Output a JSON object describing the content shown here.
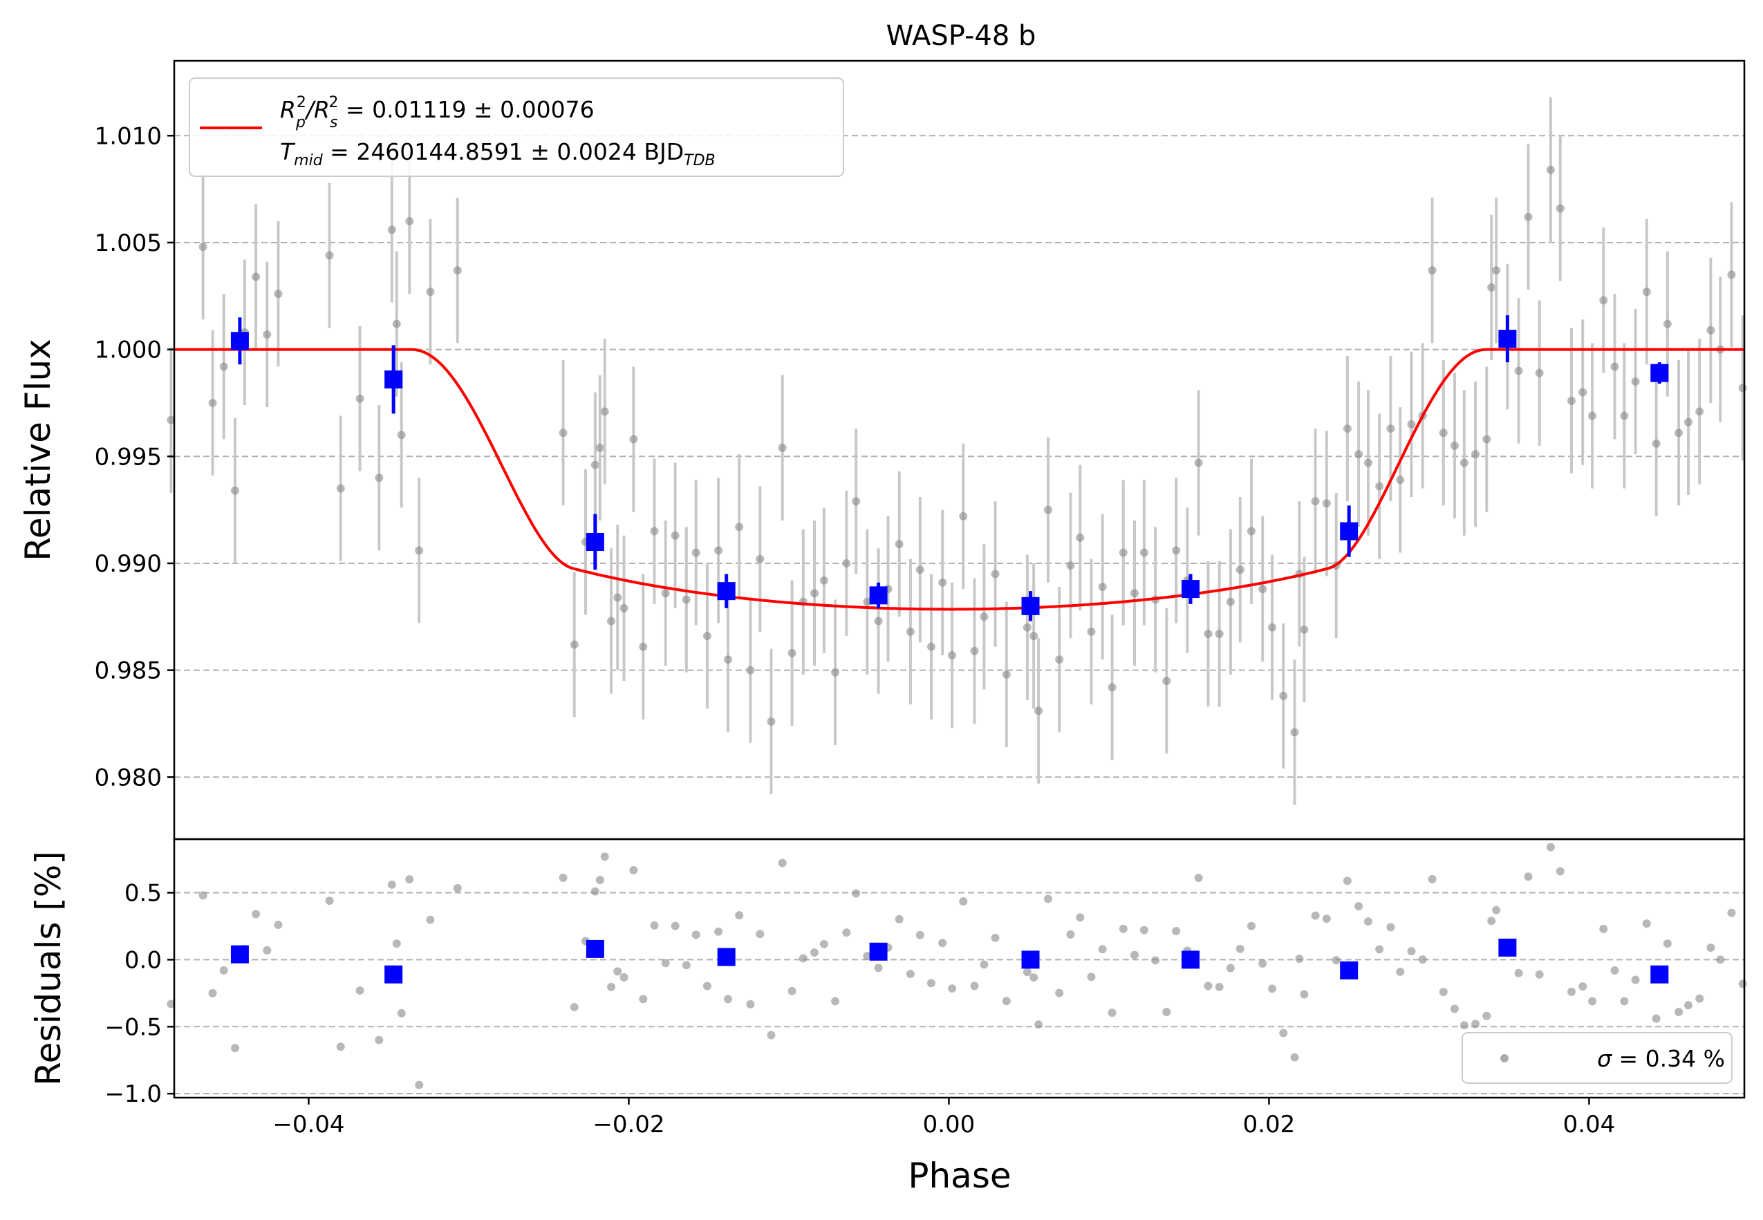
{
  "chart_data": {
    "title": "WASP-48 b",
    "xlabel": "Phase",
    "xlim": [
      -0.0484,
      0.0497
    ],
    "xticks": [
      "−0.04",
      "−0.02",
      "0.00",
      "0.02",
      "0.04"
    ],
    "xtick_values": [
      -0.04,
      -0.02,
      0.0,
      0.02,
      0.04
    ],
    "grid": "horizontal dashed",
    "top": {
      "type": "scatter",
      "ylabel": "Relative Flux",
      "ylim": [
        0.9771,
        1.0135
      ],
      "yticks": [
        "0.980",
        "0.985",
        "0.990",
        "0.995",
        "1.000",
        "1.005",
        "1.010"
      ],
      "ytick_values": [
        0.98,
        0.985,
        0.99,
        0.995,
        1.0,
        1.005,
        1.01
      ],
      "legend": {
        "placement": "upper-left",
        "line1": {
          "prefix": "R",
          "sub1": "p",
          "sup1": "2",
          "sep": "/R",
          "sub2": "s",
          "sup2": "2",
          "rest": " = 0.01119 ± 0.00076"
        },
        "line2": {
          "prefix": "T",
          "sub": "mid",
          "rest": " = 2460144.8591 ± 0.0024 BJD",
          "sub_end": "TDB"
        }
      },
      "model": {
        "color": "#ff0000",
        "depth": 0.01214,
        "t_ingress_start": -0.0336,
        "t_ingress_end": -0.0235,
        "t_egress_start": 0.0237,
        "t_egress_end": 0.0336,
        "limb_coeff": 1.1,
        "floor": 0.98785
      },
      "raw_points": {
        "color": "#888888",
        "error": 0.0034,
        "x": [
          -0.0486,
          -0.0466,
          -0.046,
          -0.0453,
          -0.0446,
          -0.044,
          -0.0433,
          -0.0426,
          -0.0419,
          -0.0387,
          -0.038,
          -0.0368,
          -0.0356,
          -0.0348,
          -0.0345,
          -0.0342,
          -0.0337,
          -0.0331,
          -0.0324,
          -0.0307,
          -0.0241,
          -0.0234,
          -0.0227,
          -0.0221,
          -0.0218,
          -0.0215,
          -0.0211,
          -0.0207,
          -0.0203,
          -0.0197,
          -0.0191,
          -0.0184,
          -0.0177,
          -0.0171,
          -0.0164,
          -0.0158,
          -0.0151,
          -0.0144,
          -0.0138,
          -0.0131,
          -0.0124,
          -0.0118,
          -0.0111,
          -0.0104,
          -0.0098,
          -0.0091,
          -0.0084,
          -0.0078,
          -0.0071,
          -0.0064,
          -0.0058,
          -0.0051,
          -0.0044,
          -0.0038,
          -0.0031,
          -0.0024,
          -0.0018,
          -0.0011,
          -0.0004,
          0.0002,
          0.0009,
          0.0016,
          0.0022,
          0.0029,
          0.0036,
          0.0049,
          0.0053,
          0.0056,
          0.0062,
          0.0069,
          0.0076,
          0.0082,
          0.0089,
          0.0096,
          0.0102,
          0.0109,
          0.0116,
          0.0122,
          0.0129,
          0.0136,
          0.0142,
          0.0149,
          0.0156,
          0.0162,
          0.0169,
          0.0176,
          0.0182,
          0.0189,
          0.0196,
          0.0202,
          0.0209,
          0.0216,
          0.0219,
          0.0222,
          0.0229,
          0.0236,
          0.0242,
          0.0249,
          0.0256,
          0.0262,
          0.0269,
          0.0276,
          0.0282,
          0.0289,
          0.0296,
          0.0302,
          0.0309,
          0.0316,
          0.0322,
          0.0329,
          0.0336,
          0.0339,
          0.0342,
          0.0349,
          0.0356,
          0.0362,
          0.0369,
          0.0376,
          0.0382,
          0.0389,
          0.0396,
          0.0402,
          0.0409,
          0.0416,
          0.0422,
          0.0429,
          0.0436,
          0.0442,
          0.0449,
          0.0456,
          0.0462,
          0.0469,
          0.0476,
          0.0482,
          0.0489,
          0.0496
        ],
        "y": [
          0.9967,
          1.0048,
          0.9975,
          0.9992,
          0.9934,
          1.0008,
          1.0034,
          1.0007,
          1.0026,
          1.0044,
          0.9935,
          0.9977,
          0.994,
          1.0056,
          1.0012,
          0.996,
          1.006,
          0.9906,
          1.0027,
          1.0037,
          0.9961,
          0.9862,
          0.991,
          0.9946,
          0.9954,
          0.9971,
          0.9873,
          0.9884,
          0.9879,
          0.9958,
          0.9861,
          0.9915,
          0.9886,
          0.9913,
          0.9883,
          0.9905,
          0.9866,
          0.9906,
          0.9855,
          0.9917,
          0.985,
          0.9902,
          0.9826,
          0.9954,
          0.9858,
          0.9882,
          0.9886,
          0.9892,
          0.9849,
          0.99,
          0.9929,
          0.9882,
          0.9873,
          0.9888,
          0.9909,
          0.9868,
          0.9897,
          0.9861,
          0.9891,
          0.9857,
          0.9922,
          0.9859,
          0.9875,
          0.9895,
          0.9848,
          0.987,
          0.9866,
          0.9831,
          0.9925,
          0.9855,
          0.9899,
          0.9912,
          0.9868,
          0.9889,
          0.9842,
          0.9905,
          0.9886,
          0.9905,
          0.9883,
          0.9845,
          0.9906,
          0.9892,
          0.9947,
          0.9867,
          0.9867,
          0.9882,
          0.9897,
          0.9915,
          0.9888,
          0.987,
          0.9838,
          0.9821,
          0.9895,
          0.9869,
          0.9929,
          0.9928,
          0.9899,
          0.9963,
          0.9951,
          0.9947,
          0.9936,
          0.9963,
          0.9939,
          0.9965,
          0.9969,
          1.0037,
          0.9961,
          0.9955,
          0.9947,
          0.9951,
          0.9958,
          1.0029,
          1.0037,
          1.0006,
          0.999,
          1.0062,
          0.9989,
          1.0084,
          1.0066,
          0.9976,
          0.998,
          0.9969,
          1.0023,
          0.9992,
          0.9969,
          0.9985,
          1.0027,
          0.9956,
          1.0012,
          0.9961,
          0.9966,
          0.9971,
          1.0009,
          1.0,
          1.0035,
          0.9982
        ]
      },
      "binned_points": {
        "color": "#0000ff",
        "x": [
          -0.0443,
          -0.0347,
          -0.0221,
          -0.0139,
          -0.0044,
          0.0051,
          0.0151,
          0.025,
          0.0349,
          0.0444
        ],
        "y": [
          1.0004,
          0.9986,
          0.991,
          0.9887,
          0.9885,
          0.988,
          0.9888,
          0.9915,
          1.0005,
          0.9989
        ],
        "err": [
          0.0011,
          0.0016,
          0.0013,
          0.0008,
          0.0006,
          0.0007,
          0.0007,
          0.0012,
          0.0011,
          0.0005
        ]
      }
    },
    "bottom": {
      "type": "scatter",
      "ylabel": "Residuals [%]",
      "ylim": [
        -1.03,
        0.9
      ],
      "yticks": [
        "−1.0",
        "−0.5",
        "0.0",
        "0.5"
      ],
      "ytick_values": [
        -1.0,
        -0.5,
        0.0,
        0.5
      ],
      "legend": {
        "placement": "lower-right",
        "sigma": "σ",
        "text": " = 0.34 %"
      },
      "binned_points": {
        "x": [
          -0.0443,
          -0.0347,
          -0.0221,
          -0.0139,
          -0.0044,
          0.0051,
          0.0151,
          0.025,
          0.0349,
          0.0444
        ],
        "y": [
          0.04,
          -0.11,
          0.08,
          0.02,
          0.06,
          0.0,
          0.0,
          -0.08,
          0.09,
          -0.11
        ]
      }
    }
  }
}
